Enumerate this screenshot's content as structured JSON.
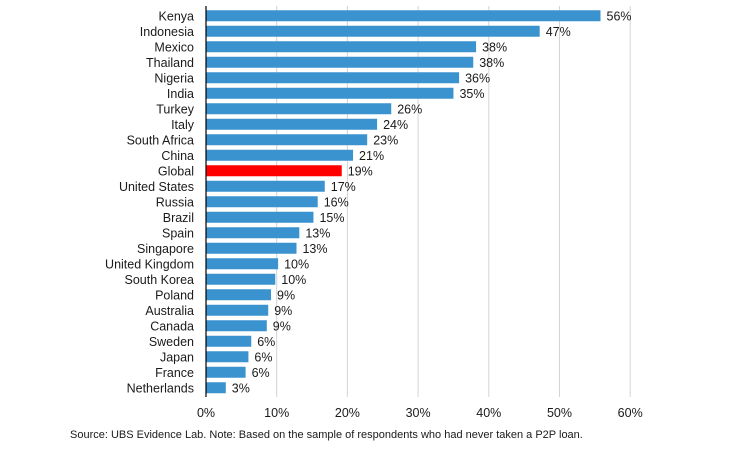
{
  "chart_data": {
    "type": "bar",
    "orientation": "horizontal",
    "title": "",
    "xlabel": "",
    "ylabel": "",
    "xlim": [
      0,
      60
    ],
    "ticks": [
      0,
      10,
      20,
      30,
      40,
      50,
      60
    ],
    "tick_labels": [
      "0%",
      "10%",
      "20%",
      "30%",
      "40%",
      "50%",
      "60%"
    ],
    "grid": true,
    "categories": [
      "Kenya",
      "Indonesia",
      "Mexico",
      "Thailand",
      "Nigeria",
      "India",
      "Turkey",
      "Italy",
      "South Africa",
      "China",
      "Global",
      "United States",
      "Russia",
      "Brazil",
      "Spain",
      "Singapore",
      "United Kingdom",
      "South Korea",
      "Poland",
      "Australia",
      "Canada",
      "Sweden",
      "Japan",
      "France",
      "Netherlands"
    ],
    "values": [
      55.8,
      47.2,
      38.2,
      37.8,
      35.8,
      35.0,
      26.2,
      24.2,
      22.8,
      20.8,
      19.2,
      16.8,
      15.8,
      15.2,
      13.2,
      12.8,
      10.2,
      9.8,
      9.2,
      8.8,
      8.6,
      6.4,
      6.0,
      5.6,
      2.8
    ],
    "value_labels": [
      "56%",
      "47%",
      "38%",
      "38%",
      "36%",
      "35%",
      "26%",
      "24%",
      "23%",
      "21%",
      "19%",
      "17%",
      "16%",
      "15%",
      "13%",
      "13%",
      "10%",
      "10%",
      "9%",
      "9%",
      "9%",
      "6%",
      "6%",
      "6%",
      "3%"
    ],
    "highlight": "Global",
    "colors": {
      "bar": "#3a93cf",
      "highlight": "#ff0000",
      "grid": "#d4d4d4",
      "axis": "#000000"
    }
  },
  "source_note": "Source: UBS Evidence Lab. Note: Based on the sample of respondents who had never taken a P2P loan."
}
